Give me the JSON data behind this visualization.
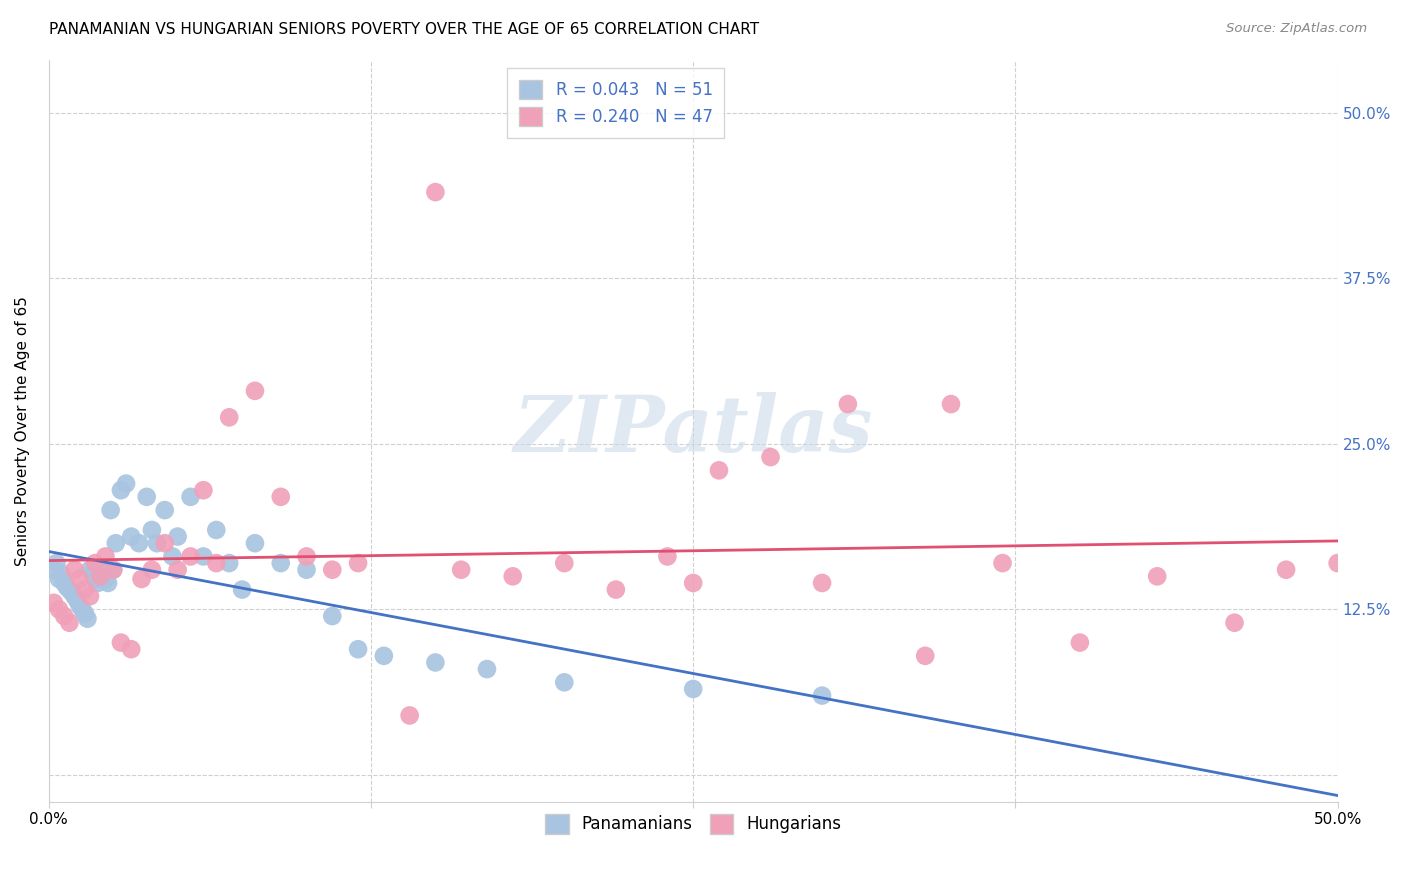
{
  "title": "PANAMANIAN VS HUNGARIAN SENIORS POVERTY OVER THE AGE OF 65 CORRELATION CHART",
  "source": "Source: ZipAtlas.com",
  "ylabel": "Seniors Poverty Over the Age of 65",
  "xlim": [
    0,
    0.5
  ],
  "ylim": [
    -0.02,
    0.54
  ],
  "yticks": [
    0.0,
    0.125,
    0.25,
    0.375,
    0.5
  ],
  "xticks": [
    0.0,
    0.125,
    0.25,
    0.375,
    0.5
  ],
  "watermark_text": "ZIPatlas",
  "panamanian_color": "#a8c4e0",
  "hungarian_color": "#f0a0b8",
  "panamanian_line_color": "#4472c4",
  "hungarian_line_color": "#e05070",
  "background_color": "#ffffff",
  "grid_color": "#d0d0d0",
  "right_tick_color": "#4472c4",
  "title_fontsize": 11,
  "label_fontsize": 11,
  "tick_fontsize": 11,
  "legend_fontsize": 12,
  "pan_r": 0.043,
  "pan_n": 51,
  "hun_r": 0.24,
  "hun_n": 47,
  "panamanian_x": [
    0.002,
    0.003,
    0.004,
    0.005,
    0.006,
    0.007,
    0.008,
    0.009,
    0.01,
    0.011,
    0.012,
    0.013,
    0.014,
    0.015,
    0.016,
    0.017,
    0.018,
    0.019,
    0.02,
    0.021,
    0.022,
    0.023,
    0.024,
    0.025,
    0.026,
    0.028,
    0.03,
    0.032,
    0.035,
    0.038,
    0.04,
    0.042,
    0.045,
    0.048,
    0.05,
    0.055,
    0.06,
    0.065,
    0.07,
    0.075,
    0.08,
    0.09,
    0.1,
    0.11,
    0.12,
    0.13,
    0.15,
    0.17,
    0.2,
    0.25,
    0.3
  ],
  "panamanian_y": [
    0.155,
    0.16,
    0.148,
    0.152,
    0.145,
    0.142,
    0.14,
    0.138,
    0.135,
    0.132,
    0.128,
    0.125,
    0.122,
    0.118,
    0.155,
    0.152,
    0.148,
    0.145,
    0.15,
    0.155,
    0.148,
    0.145,
    0.2,
    0.155,
    0.175,
    0.215,
    0.22,
    0.18,
    0.175,
    0.21,
    0.185,
    0.175,
    0.2,
    0.165,
    0.18,
    0.21,
    0.165,
    0.185,
    0.16,
    0.14,
    0.175,
    0.16,
    0.155,
    0.12,
    0.095,
    0.09,
    0.085,
    0.08,
    0.07,
    0.065,
    0.06
  ],
  "hungarian_x": [
    0.002,
    0.004,
    0.006,
    0.008,
    0.01,
    0.012,
    0.014,
    0.016,
    0.018,
    0.02,
    0.022,
    0.025,
    0.028,
    0.032,
    0.036,
    0.04,
    0.045,
    0.05,
    0.055,
    0.06,
    0.065,
    0.07,
    0.08,
    0.09,
    0.1,
    0.11,
    0.12,
    0.14,
    0.16,
    0.18,
    0.2,
    0.22,
    0.24,
    0.26,
    0.28,
    0.31,
    0.34,
    0.37,
    0.4,
    0.43,
    0.46,
    0.48,
    0.5,
    0.35,
    0.25,
    0.3,
    0.15
  ],
  "hungarian_y": [
    0.13,
    0.125,
    0.12,
    0.115,
    0.155,
    0.148,
    0.14,
    0.135,
    0.16,
    0.15,
    0.165,
    0.155,
    0.1,
    0.095,
    0.148,
    0.155,
    0.175,
    0.155,
    0.165,
    0.215,
    0.16,
    0.27,
    0.29,
    0.21,
    0.165,
    0.155,
    0.16,
    0.045,
    0.155,
    0.15,
    0.16,
    0.14,
    0.165,
    0.23,
    0.24,
    0.28,
    0.09,
    0.16,
    0.1,
    0.15,
    0.115,
    0.155,
    0.16,
    0.28,
    0.145,
    0.145,
    0.44
  ]
}
